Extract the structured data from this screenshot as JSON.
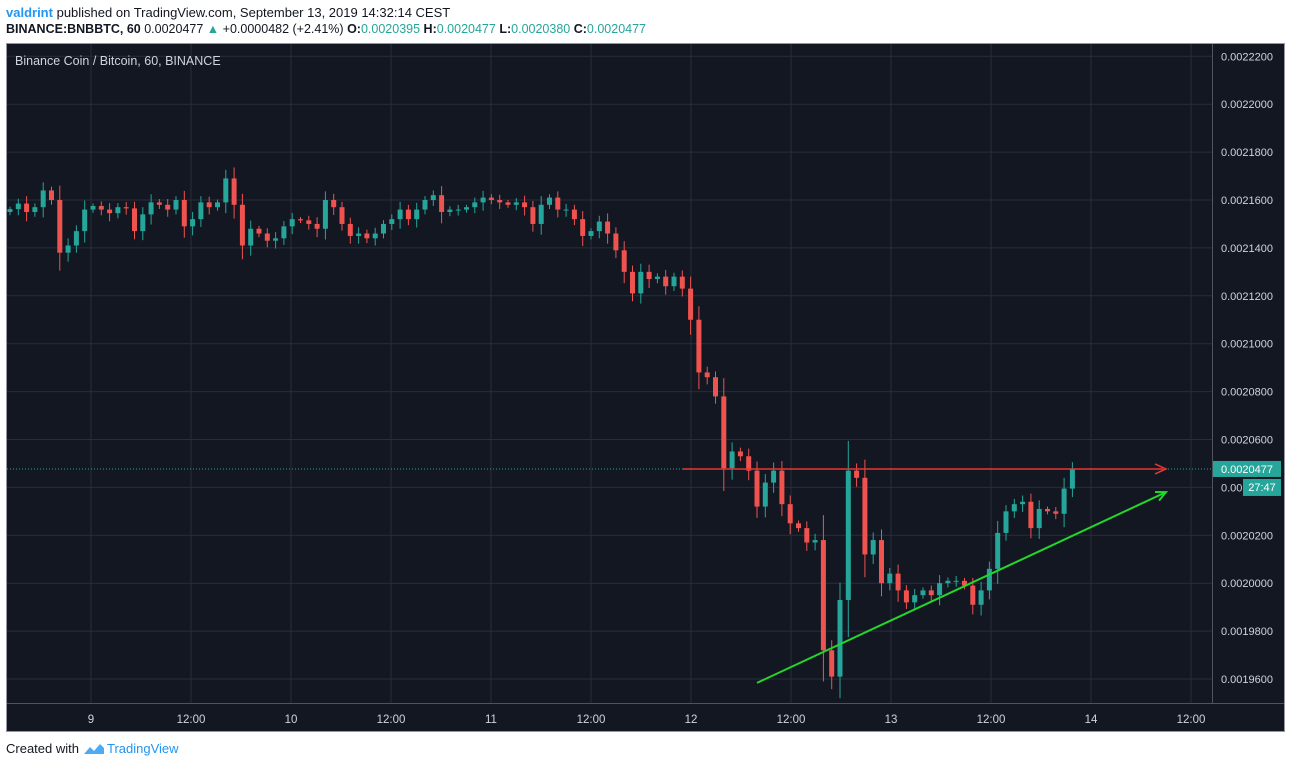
{
  "header": {
    "user": "valdrint",
    "published_text": "published on TradingView.com, September 13, 2019 14:32:14 CEST",
    "symbol": "BINANCE:BNBBTC, 60",
    "last": "0.0020477",
    "change_arrow": "▲",
    "change": "+0.0000482 (+2.41%)",
    "o_label": "O:",
    "o": "0.0020395",
    "h_label": "H:",
    "h": "0.0020477",
    "l_label": "L:",
    "l": "0.0020380",
    "c_label": "C:",
    "c": "0.0020477"
  },
  "footer": {
    "created_with": "Created with",
    "brand": "TradingView"
  },
  "colors": {
    "background": "#131722",
    "grid": "#2a2e39",
    "up": "#26a69a",
    "down": "#ef5350",
    "resistance": "#e53935",
    "trendline": "#22d62a",
    "price_badge": "#26a69a"
  },
  "chart_data": {
    "type": "candlestick",
    "title": "Binance Coin / Bitcoin, 60, BINANCE",
    "ylim": [
      0.00195,
      0.002225
    ],
    "y_ticks": [
      "0.0022200",
      "0.0022000",
      "0.0021800",
      "0.0021600",
      "0.0021400",
      "0.0021200",
      "0.0021000",
      "0.0020800",
      "0.0020600",
      "0.0020477",
      "0.0020400",
      "0.0020200",
      "0.0020000",
      "0.0019800",
      "0.0019600"
    ],
    "x_ticks": [
      "9",
      "12:00",
      "10",
      "12:00",
      "11",
      "12:00",
      "12",
      "12:00",
      "13",
      "12:00",
      "14",
      "12:00"
    ],
    "current_price": 0.0020477,
    "current_price_label": "0.0020477",
    "countdown": "27:47",
    "resistance_level": 0.0020477,
    "trendline": {
      "start": [
        0.00195837,
        "Sep 12 ~08:00"
      ],
      "end": [
        0.00203802,
        "Sep 14 ~09:00"
      ]
    },
    "closes": [
      0.0021562,
      0.0021585,
      0.002155,
      0.002157,
      0.002164,
      0.00216,
      0.002138,
      0.002141,
      0.002147,
      0.002156,
      0.0021575,
      0.002156,
      0.0021545,
      0.002157,
      0.0021565,
      0.002147,
      0.002154,
      0.002159,
      0.002158,
      0.002156,
      0.00216,
      0.002149,
      0.002152,
      0.002159,
      0.002157,
      0.002159,
      0.002169,
      0.002158,
      0.002141,
      0.002148,
      0.002146,
      0.002143,
      0.002144,
      0.002149,
      0.002152,
      0.0021515,
      0.00215,
      0.002148,
      0.00216,
      0.002157,
      0.00215,
      0.002145,
      0.002146,
      0.002144,
      0.002146,
      0.00215,
      0.002152,
      0.002156,
      0.002152,
      0.002156,
      0.00216,
      0.002162,
      0.002155,
      0.002156,
      0.002156,
      0.002157,
      0.002159,
      0.002161,
      0.00216,
      0.002159,
      0.002158,
      0.002159,
      0.002157,
      0.00215,
      0.002158,
      0.002161,
      0.002156,
      0.002156,
      0.002152,
      0.002145,
      0.002147,
      0.002151,
      0.002146,
      0.002139,
      0.00213,
      0.002121,
      0.00213,
      0.002127,
      0.002128,
      0.002124,
      0.002128,
      0.002123,
      0.00211,
      0.002088,
      0.002086,
      0.002078,
      0.002048,
      0.002055,
      0.002053,
      0.002047,
      0.002032,
      0.002042,
      0.002047,
      0.002033,
      0.002025,
      0.002023,
      0.002017,
      0.002018,
      0.001972,
      0.001961,
      0.001993,
      0.002047,
      0.002044,
      0.002012,
      0.002018,
      0.002,
      0.002004,
      0.001997,
      0.001992,
      0.001995,
      0.001997,
      0.001995,
      0.002,
      0.002001,
      0.002001,
      0.001999,
      0.001991,
      0.001997,
      0.002006,
      0.002021,
      0.00203,
      0.002033,
      0.002034,
      0.002023,
      0.002031,
      0.00203,
      0.002029,
      0.0020395,
      0.0020477
    ]
  }
}
